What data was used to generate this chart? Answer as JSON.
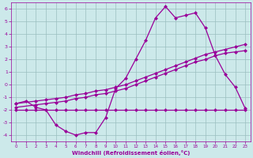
{
  "xlabel": "Windchill (Refroidissement éolien,°C)",
  "xlim": [
    -0.5,
    23.5
  ],
  "ylim": [
    -4.5,
    6.5
  ],
  "yticks": [
    -4,
    -3,
    -2,
    -1,
    0,
    1,
    2,
    3,
    4,
    5,
    6
  ],
  "xticks": [
    0,
    1,
    2,
    3,
    4,
    5,
    6,
    7,
    8,
    9,
    10,
    11,
    12,
    13,
    14,
    15,
    16,
    17,
    18,
    19,
    20,
    21,
    22,
    23
  ],
  "bg_color": "#cce9ea",
  "line_color": "#990099",
  "grid_color": "#9bbfbf",
  "line1_x": [
    0,
    1,
    2,
    3,
    4,
    5,
    6,
    7,
    8,
    9,
    10,
    11,
    12,
    13,
    14,
    15,
    16,
    17,
    18,
    19,
    20,
    21,
    22,
    23
  ],
  "line1_y": [
    -1.5,
    -1.3,
    -1.8,
    -2.0,
    -3.2,
    -3.7,
    -4.0,
    -3.8,
    -3.8,
    -2.6,
    -0.3,
    0.5,
    2.0,
    3.5,
    5.3,
    6.2,
    5.3,
    5.5,
    5.7,
    4.5,
    2.3,
    0.8,
    -0.2,
    -1.9
  ],
  "line2_x": [
    0,
    2,
    3,
    4,
    5,
    6,
    7,
    8,
    9,
    10,
    11,
    12,
    13,
    14,
    15,
    16,
    17,
    18,
    19,
    20,
    21,
    22,
    23
  ],
  "line2_y": [
    -1.5,
    -1.3,
    -1.2,
    -1.1,
    -1.0,
    -0.8,
    -0.7,
    -0.5,
    -0.4,
    -0.2,
    0.0,
    0.3,
    0.6,
    0.9,
    1.2,
    1.5,
    1.8,
    2.1,
    2.4,
    2.6,
    2.8,
    3.0,
    3.2
  ],
  "line3_x": [
    0,
    2,
    3,
    4,
    5,
    6,
    7,
    8,
    9,
    10,
    11,
    12,
    13,
    14,
    15,
    16,
    17,
    18,
    19,
    20,
    21,
    22,
    23
  ],
  "line3_y": [
    -1.8,
    -1.6,
    -1.5,
    -1.4,
    -1.3,
    -1.1,
    -1.0,
    -0.8,
    -0.7,
    -0.5,
    -0.3,
    0.0,
    0.3,
    0.6,
    0.9,
    1.2,
    1.5,
    1.8,
    2.0,
    2.3,
    2.5,
    2.6,
    2.7
  ],
  "line4_x": [
    0,
    1,
    2,
    3,
    4,
    5,
    6,
    7,
    8,
    9,
    10,
    11,
    12,
    13,
    14,
    15,
    16,
    17,
    18,
    19,
    20,
    21,
    22,
    23
  ],
  "line4_y": [
    -2.0,
    -2.0,
    -2.0,
    -2.0,
    -2.0,
    -2.0,
    -2.0,
    -2.0,
    -2.0,
    -2.0,
    -2.0,
    -2.0,
    -2.0,
    -2.0,
    -2.0,
    -2.0,
    -2.0,
    -2.0,
    -2.0,
    -2.0,
    -2.0,
    -2.0,
    -2.0,
    -2.0
  ],
  "marker": "D",
  "markersize": 2.5,
  "linewidth": 0.9
}
